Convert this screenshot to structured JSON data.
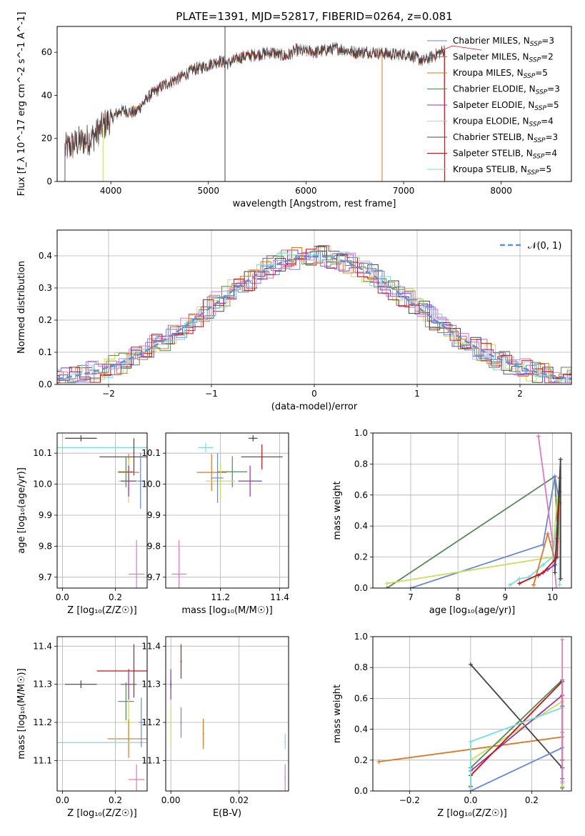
{
  "figure": {
    "title": "PLATE=1391, MJD=52817, FIBERID=0264, z=0.081"
  },
  "colors": {
    "Chabrier MILES": "#6688dd",
    "Salpeter MILES": "#9c6fd6",
    "Kroupa MILES": "#dd7722",
    "Chabrier ELODIE": "#558855",
    "Salpeter ELODIE": "#9933aa",
    "Kroupa ELODIE": "#ccdd55",
    "Chabrier STELIB": "#444444",
    "Salpeter STELIB": "#cc1111",
    "Kroupa STELIB": "#77dddd",
    "pink": "#e377c2"
  },
  "chart_data": [
    {
      "id": "spectrum",
      "type": "line",
      "xlabel": "wavelength [Angstrom, rest frame]",
      "ylabel": "Flux [f_λ 10^-17 erg cm^-2 s^-1 A^-1]",
      "xlim": [
        3450,
        8720
      ],
      "ylim": [
        0,
        72
      ],
      "xticks": [
        4000,
        5000,
        6000,
        7000,
        8000
      ],
      "yticks": [
        0,
        20,
        40,
        60
      ],
      "grid": false,
      "legend_position": "top-right",
      "legend": [
        {
          "label": "Chabrier MILES, N",
          "sub": "SSP",
          "val": "=3"
        },
        {
          "label": "Salpeter MILES, N",
          "sub": "SSP",
          "val": "=2"
        },
        {
          "label": "Kroupa MILES, N",
          "sub": "SSP",
          "val": "=5"
        },
        {
          "label": "Chabrier ELODIE, N",
          "sub": "SSP",
          "val": "=3"
        },
        {
          "label": "Salpeter ELODIE, N",
          "sub": "SSP",
          "val": "=5"
        },
        {
          "label": "Kroupa ELODIE, N",
          "sub": "SSP",
          "val": "=4"
        },
        {
          "label": "Chabrier STELIB, N",
          "sub": "SSP",
          "val": "=3"
        },
        {
          "label": "Salpeter STELIB, N",
          "sub": "SSP",
          "val": "=4"
        },
        {
          "label": "Kroupa STELIB, N",
          "sub": "SSP",
          "val": "=5"
        }
      ],
      "continuum": [
        [
          3530,
          15
        ],
        [
          3650,
          18
        ],
        [
          3800,
          20
        ],
        [
          3950,
          27
        ],
        [
          4100,
          33
        ],
        [
          4250,
          32
        ],
        [
          4400,
          40
        ],
        [
          4550,
          45
        ],
        [
          4700,
          48
        ],
        [
          4850,
          52
        ],
        [
          5000,
          54
        ],
        [
          5100,
          56
        ],
        [
          5200,
          55
        ],
        [
          5350,
          58
        ],
        [
          5500,
          59
        ],
        [
          5650,
          60
        ],
        [
          5800,
          58
        ],
        [
          5900,
          61
        ],
        [
          6100,
          60
        ],
        [
          6300,
          62
        ],
        [
          6500,
          60
        ],
        [
          6700,
          60
        ],
        [
          6900,
          59
        ],
        [
          7050,
          59
        ],
        [
          7200,
          56
        ],
        [
          7300,
          58
        ],
        [
          7420,
          61
        ]
      ],
      "dropouts": [
        {
          "color": "Chabrier STELIB",
          "x": 5170
        },
        {
          "color": "Kroupa MILES",
          "x": 6780
        },
        {
          "color": "Kroupa ELODIE",
          "x": 3920
        },
        {
          "color": "Salpeter STELIB",
          "x": 7420
        }
      ],
      "mild_extension": {
        "color": "Salpeter STELIB",
        "points": [
          [
            7400,
            61
          ],
          [
            7500,
            63
          ],
          [
            7650,
            62
          ],
          [
            7800,
            61
          ]
        ]
      }
    },
    {
      "id": "residual_histogram",
      "type": "step",
      "xlabel": "(data-model)/error",
      "ylabel": "Normed distribution",
      "xlim": [
        -2.5,
        2.5
      ],
      "ylim": [
        0,
        0.48
      ],
      "xticks": [
        -2,
        -1,
        0,
        1,
        2
      ],
      "yticks": [
        0.0,
        0.1,
        0.2,
        0.3,
        0.4
      ],
      "grid": true,
      "legend": [
        {
          "label": "𝒩(0, 1)",
          "style": "dashed"
        }
      ],
      "normal_curve": {
        "mean": 0,
        "sigma": 1
      }
    },
    {
      "id": "age_vs_Z",
      "type": "errorbar",
      "xlabel": "Z [log₁₀(Z/Z☉)]",
      "ylabel": "age [log₁₀(age/yr)]",
      "xlim": [
        -0.02,
        0.32
      ],
      "ylim": [
        9.665,
        10.165
      ],
      "xticks": [
        0.0,
        0.2
      ],
      "yticks": [
        9.7,
        9.8,
        9.9,
        10.0,
        10.1
      ],
      "grid": true,
      "points": [
        {
          "c": "Chabrier STELIB",
          "x": 0.07,
          "y": 10.148,
          "xe": 0.06,
          "ye": 0.01
        },
        {
          "c": "Kroupa STELIB",
          "x": 0.2,
          "y": 10.118,
          "xe": 0.23,
          "ye": 0.02
        },
        {
          "c": "Salpeter STELIB",
          "x": 0.27,
          "y": 10.088,
          "xe": 0.13,
          "ye": 0.06
        },
        {
          "c": "Chabrier ELODIE",
          "x": 0.24,
          "y": 10.04,
          "xe": 0.03,
          "ye": 0.05
        },
        {
          "c": "Kroupa MILES",
          "x": 0.25,
          "y": 10.038,
          "xe": 0.04,
          "ye": 0.06
        },
        {
          "c": "Kroupa ELODIE",
          "x": 0.25,
          "y": 10.01,
          "xe": 0.04,
          "ye": 0.07
        },
        {
          "c": "Salpeter ELODIE",
          "x": 0.25,
          "y": 10.01,
          "xe": 0.03,
          "ye": 0.05
        },
        {
          "c": "Chabrier MILES",
          "x": 0.295,
          "y": 10.01,
          "xe": 0.01,
          "ye": 0.09
        },
        {
          "c": "pink",
          "x": 0.28,
          "y": 9.71,
          "xe": 0.03,
          "ye": 0.11
        }
      ]
    },
    {
      "id": "age_vs_mass",
      "type": "errorbar",
      "xlabel": "mass [log₁₀(M/M☉)]",
      "ylabel": "",
      "xlim": [
        11.015,
        11.43
      ],
      "ylim": [
        9.665,
        10.165
      ],
      "xticks": [
        11.2,
        11.4
      ],
      "yticks": [
        9.7,
        9.8,
        9.9,
        10.0,
        10.1
      ],
      "grid": true,
      "points": [
        {
          "c": "Chabrier STELIB",
          "x": 11.31,
          "y": 10.148,
          "xe": 0.015,
          "ye": 0.01
        },
        {
          "c": "Kroupa STELIB",
          "x": 11.15,
          "y": 10.118,
          "xe": 0.025,
          "ye": 0.015
        },
        {
          "c": "Salpeter STELIB",
          "x": 11.34,
          "y": 10.088,
          "xe": 0.07,
          "ye": 0.04
        },
        {
          "c": "Chabrier ELODIE",
          "x": 11.24,
          "y": 10.04,
          "xe": 0.05,
          "ye": 0.05
        },
        {
          "c": "Kroupa MILES",
          "x": 11.17,
          "y": 10.038,
          "xe": 0.05,
          "ye": 0.06
        },
        {
          "c": "Kroupa ELODIE",
          "x": 11.2,
          "y": 10.01,
          "xe": 0.05,
          "ye": 0.06
        },
        {
          "c": "Salpeter ELODIE",
          "x": 11.3,
          "y": 10.01,
          "xe": 0.04,
          "ye": 0.05
        },
        {
          "c": "Chabrier MILES",
          "x": 11.19,
          "y": 10.02,
          "xe": 0.02,
          "ye": 0.08
        },
        {
          "c": "pink",
          "x": 11.06,
          "y": 9.71,
          "xe": 0.025,
          "ye": 0.11
        }
      ]
    },
    {
      "id": "mass_weight_vs_age",
      "type": "line",
      "xlabel": "age [log₁₀(age/yr)]",
      "ylabel": "mass weight",
      "xlim": [
        6.2,
        10.4
      ],
      "ylim": [
        0,
        1
      ],
      "xticks": [
        7,
        8,
        9,
        10
      ],
      "yticks": [
        0.0,
        0.2,
        0.4,
        0.6,
        0.8,
        1.0
      ],
      "grid": true,
      "series": [
        {
          "c": "Chabrier ELODIE",
          "points": [
            [
              6.5,
              0.0
            ],
            [
              10.05,
              0.72
            ],
            [
              10.1,
              0.4
            ]
          ]
        },
        {
          "c": "Chabrier MILES",
          "points": [
            [
              7.0,
              0.0
            ],
            [
              9.8,
              0.28
            ],
            [
              10.05,
              0.72
            ],
            [
              10.15,
              0.55
            ]
          ]
        },
        {
          "c": "Kroupa ELODIE",
          "points": [
            [
              6.5,
              0.03
            ],
            [
              10.0,
              0.2
            ],
            [
              10.1,
              0.58
            ],
            [
              10.15,
              0.3
            ]
          ]
        },
        {
          "c": "pink",
          "points": [
            [
              9.7,
              0.98
            ],
            [
              10.0,
              0.3
            ],
            [
              10.08,
              0.0
            ]
          ]
        },
        {
          "c": "Kroupa STELIB",
          "points": [
            [
              9.1,
              0.02
            ],
            [
              9.3,
              0.06
            ],
            [
              9.5,
              0.07
            ],
            [
              9.8,
              0.15
            ],
            [
              10.0,
              0.2
            ],
            [
              10.15,
              0.54
            ],
            [
              10.15,
              0.02
            ]
          ]
        },
        {
          "c": "Kroupa MILES",
          "points": [
            [
              9.6,
              0.02
            ],
            [
              9.9,
              0.35
            ],
            [
              10.05,
              0.18
            ],
            [
              10.1,
              0.32
            ]
          ]
        },
        {
          "c": "Salpeter ELODIE",
          "points": [
            [
              9.7,
              0.08
            ],
            [
              9.9,
              0.12
            ],
            [
              10.05,
              0.15
            ],
            [
              10.15,
              0.62
            ]
          ]
        },
        {
          "c": "Salpeter STELIB",
          "points": [
            [
              9.3,
              0.03
            ],
            [
              9.8,
              0.1
            ],
            [
              10.1,
              0.2
            ],
            [
              10.15,
              0.71
            ]
          ]
        },
        {
          "c": "Chabrier STELIB",
          "points": [
            [
              10.05,
              0.1
            ],
            [
              10.17,
              0.83
            ],
            [
              10.17,
              0.06
            ]
          ]
        }
      ]
    },
    {
      "id": "mass_vs_Z",
      "type": "errorbar",
      "xlabel": "Z [log₁₀(Z/Z☉)]",
      "ylabel": "mass [log₁₀(M/M☉)]",
      "xlim": [
        -0.02,
        0.32
      ],
      "ylim": [
        11.02,
        11.425
      ],
      "xticks": [
        0.0,
        0.2
      ],
      "yticks": [
        11.1,
        11.2,
        11.3,
        11.4
      ],
      "grid": true,
      "points": [
        {
          "c": "Chabrier STELIB",
          "x": 0.07,
          "y": 11.3,
          "xe": 0.06,
          "ye": 0.01
        },
        {
          "c": "Salpeter STELIB",
          "x": 0.27,
          "y": 11.335,
          "xe": 0.14,
          "ye": 0.07
        },
        {
          "c": "Salpeter ELODIE",
          "x": 0.25,
          "y": 11.3,
          "xe": 0.03,
          "ye": 0.04
        },
        {
          "c": "Chabrier ELODIE",
          "x": 0.24,
          "y": 11.255,
          "xe": 0.03,
          "ye": 0.05
        },
        {
          "c": "Kroupa ELODIE",
          "x": 0.25,
          "y": 11.2,
          "xe": 0.02,
          "ye": 0.06
        },
        {
          "c": "Kroupa MILES",
          "x": 0.25,
          "y": 11.157,
          "xe": 0.08,
          "ye": 0.05
        },
        {
          "c": "Kroupa STELIB",
          "x": 0.2,
          "y": 11.147,
          "xe": 0.22,
          "ye": 0.02
        },
        {
          "c": "Chabrier MILES",
          "x": 0.298,
          "y": 11.2,
          "xe": 0.01,
          "ye": 0.065
        },
        {
          "c": "pink",
          "x": 0.28,
          "y": 11.05,
          "xe": 0.03,
          "ye": 0.04
        }
      ]
    },
    {
      "id": "mass_vs_EBV",
      "type": "errorbar",
      "xlabel": "E(B-V)",
      "ylabel": "",
      "xlim": [
        -0.0015,
        0.0345
      ],
      "ylim": [
        11.02,
        11.425
      ],
      "xticks": [
        0.0,
        0.02
      ],
      "yticks": [
        11.1,
        11.2,
        11.3,
        11.4
      ],
      "grid": true,
      "points": [
        {
          "c": "Chabrier STELIB",
          "x": 0.0,
          "y": 11.3,
          "xe": 0.0002,
          "ye": 0.01
        },
        {
          "c": "Salpeter ELODIE",
          "x": 0.0,
          "y": 11.3,
          "xe": 0.0002,
          "ye": 0.04
        },
        {
          "c": "Kroupa ELODIE",
          "x": 0.0,
          "y": 11.19,
          "xe": 0.0002,
          "ye": 0.05
        },
        {
          "c": "Salpeter STELIB",
          "x": 0.003,
          "y": 11.36,
          "xe": 0.0002,
          "ye": 0.045
        },
        {
          "c": "Chabrier MILES",
          "x": 0.003,
          "y": 11.2,
          "xe": 0.0002,
          "ye": 0.04
        },
        {
          "c": "Kroupa MILES",
          "x": 0.0095,
          "y": 11.17,
          "xe": 0.0002,
          "ye": 0.04
        },
        {
          "c": "Kroupa STELIB",
          "x": 0.0335,
          "y": 11.15,
          "xe": 0.0002,
          "ye": 0.02
        },
        {
          "c": "pink",
          "x": 0.0335,
          "y": 11.055,
          "xe": 0.0002,
          "ye": 0.035
        }
      ]
    },
    {
      "id": "mass_weight_vs_Z",
      "type": "line",
      "xlabel": "Z [log₁₀(Z/Z☉)]",
      "ylabel": "mass weight",
      "xlim": [
        -0.32,
        0.33
      ],
      "ylim": [
        0,
        1
      ],
      "xticks": [
        -0.2,
        0.0,
        0.2
      ],
      "yticks": [
        0.0,
        0.2,
        0.4,
        0.6,
        0.8,
        1.0
      ],
      "grid": true,
      "series": [
        {
          "c": "Kroupa MILES",
          "points": [
            [
              -0.3,
              0.19
            ],
            [
              0.3,
              0.35
            ],
            [
              0.3,
              0.38
            ]
          ]
        },
        {
          "c": "Chabrier STELIB",
          "points": [
            [
              0.0,
              0.82
            ],
            [
              0.3,
              0.15
            ],
            [
              0.3,
              0.02
            ]
          ]
        },
        {
          "c": "Chabrier MILES",
          "points": [
            [
              0.0,
              0.0
            ],
            [
              0.3,
              0.28
            ],
            [
              0.3,
              0.55
            ]
          ]
        },
        {
          "c": "Kroupa ELODIE",
          "points": [
            [
              0.0,
              0.2
            ],
            [
              0.3,
              0.58
            ],
            [
              0.3,
              0.03
            ]
          ]
        },
        {
          "c": "Chabrier ELODIE",
          "points": [
            [
              0.0,
              0.15
            ],
            [
              0.3,
              0.72
            ],
            [
              0.3,
              0.55
            ]
          ]
        },
        {
          "c": "Salpeter ELODIE",
          "points": [
            [
              0.0,
              0.13
            ],
            [
              0.3,
              0.62
            ],
            [
              0.3,
              0.08
            ]
          ]
        },
        {
          "c": "Salpeter STELIB",
          "points": [
            [
              0.0,
              0.03
            ],
            [
              0.0,
              0.1
            ],
            [
              0.3,
              0.71
            ],
            [
              0.3,
              0.2
            ]
          ]
        },
        {
          "c": "Kroupa STELIB",
          "points": [
            [
              0.0,
              0.02
            ],
            [
              0.0,
              0.32
            ],
            [
              0.3,
              0.54
            ],
            [
              0.3,
              0.05
            ]
          ]
        },
        {
          "c": "pink",
          "points": [
            [
              0.3,
              0.98
            ],
            [
              0.3,
              0.06
            ]
          ]
        }
      ]
    }
  ]
}
